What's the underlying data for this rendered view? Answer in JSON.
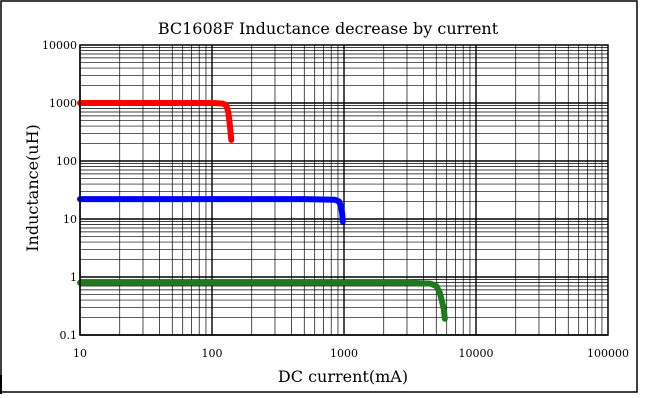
{
  "chart_data": {
    "type": "line",
    "title": "BC1608F Inductance decrease by current",
    "xlabel": "DC current(mA)",
    "ylabel": "Inductance(uH)",
    "x_scale": "log",
    "y_scale": "log",
    "xlim": [
      10,
      100000
    ],
    "ylim": [
      0.1,
      10000
    ],
    "x_ticks": [
      10,
      100,
      1000,
      10000,
      100000
    ],
    "x_tick_labels": [
      "10",
      "100",
      "1000",
      "10000",
      "100000"
    ],
    "y_ticks": [
      0.1,
      1,
      10,
      100,
      1000,
      10000
    ],
    "y_tick_labels": [
      "0.1",
      "1",
      "10",
      "100",
      "1000",
      "10000"
    ],
    "grid": true,
    "series": [
      {
        "color": "#ff0000",
        "x": [
          10,
          50,
          100,
          120,
          128,
          133,
          137,
          140
        ],
        "y": [
          1000,
          1000,
          1000,
          980,
          920,
          700,
          400,
          230
        ]
      },
      {
        "color": "#0000ff",
        "x": [
          10,
          100,
          500,
          850,
          920,
          950,
          970,
          980
        ],
        "y": [
          22,
          22,
          22,
          21.5,
          20,
          16,
          12,
          9
        ]
      },
      {
        "color": "#1f7a1f",
        "x": [
          10,
          100,
          1000,
          3000,
          4500,
          5000,
          5300,
          5500,
          5700,
          5800
        ],
        "y": [
          0.8,
          0.8,
          0.8,
          0.8,
          0.77,
          0.7,
          0.55,
          0.4,
          0.28,
          0.19
        ]
      }
    ]
  }
}
